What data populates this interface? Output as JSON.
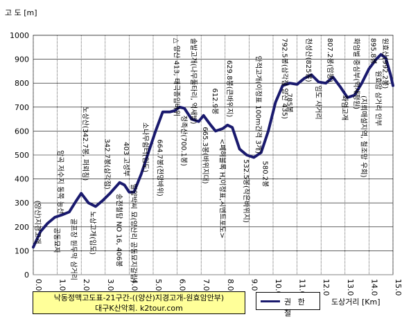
{
  "chart_data": {
    "type": "line",
    "ylabel": "고 도 [m]",
    "xlabel": "도상거리 [Km]",
    "xlim": [
      0,
      15
    ],
    "ylim": [
      0,
      1000
    ],
    "x_ticks": [
      "0.0",
      "1.0",
      "2.0",
      "3.0",
      "4.0",
      "5.0",
      "6.0",
      "7.0",
      "8.0",
      "9.0",
      "10.0",
      "11.0",
      "12.0",
      "13.0",
      "14.0",
      "15.0"
    ],
    "y_ticks": [
      "0",
      "100",
      "200",
      "300",
      "400",
      "500",
      "600",
      "700",
      "800",
      "900",
      "1000"
    ],
    "series": [
      {
        "name": "권 한 철",
        "color": "#1a1a6e",
        "x": [
          0.0,
          0.3,
          0.6,
          0.9,
          1.2,
          1.5,
          1.8,
          2.0,
          2.3,
          2.6,
          2.9,
          3.2,
          3.6,
          3.8,
          4.0,
          4.2,
          4.5,
          4.8,
          5.1,
          5.4,
          5.7,
          5.9,
          6.1,
          6.3,
          6.6,
          6.9,
          7.1,
          7.4,
          7.6,
          7.9,
          8.1,
          8.3,
          8.6,
          8.9,
          9.2,
          9.5,
          9.8,
          10.1,
          10.4,
          10.7,
          11.0,
          11.3,
          11.6,
          11.9,
          12.2,
          12.5,
          12.8,
          13.1,
          13.4,
          13.7,
          14.0,
          14.3,
          14.5,
          14.7,
          14.9,
          15.0
        ],
        "y": [
          115,
          180,
          215,
          240,
          250,
          262,
          310,
          340,
          300,
          285,
          310,
          340,
          385,
          375,
          345,
          345,
          420,
          510,
          600,
          680,
          680,
          685,
          700,
          695,
          650,
          640,
          665,
          625,
          600,
          610,
          625,
          615,
          525,
          500,
          490,
          510,
          600,
          720,
          790,
          800,
          795,
          820,
          835,
          805,
          800,
          825,
          785,
          740,
          750,
          800,
          860,
          900,
          920,
          905,
          835,
          790
        ]
      }
    ],
    "annotations": [
      {
        "x": 0.0,
        "text": "(양산)지경고개"
      },
      {
        "x": 0.8,
        "text": "공동묘지"
      },
      {
        "x": 0.95,
        "text": "암곡 저수지 동쪽 능선"
      },
      {
        "x": 1.5,
        "text": "골프장 원두막 삼거리"
      },
      {
        "x": 2.0,
        "text": "노상산(342.7봉, 퍼뢰침)"
      },
      {
        "x": 2.3,
        "text": "노상고개(임도)"
      },
      {
        "x": 2.9,
        "text": "342.7봉(삼각점)"
      },
      {
        "x": 3.4,
        "text": "송전철탑 NO 16, 406봉"
      },
      {
        "x": 3.7,
        "text": "403 고성부"
      },
      {
        "x": 4.0,
        "text": "밀양박씨 묘(양산리 공동묘지갈림)"
      },
      {
        "x": 4.5,
        "text": "소나무쉼터(임도)"
      },
      {
        "x": 5.1,
        "text": "664.7봉(전망바위)"
      },
      {
        "x": 5.8,
        "text": "△ 양산 413, 태극종입바위"
      },
      {
        "x": 6.1,
        "text": "정족산(700.1봉)"
      },
      {
        "x": 6.5,
        "text": "솔발고개(나무풀타리, 억새밭)"
      },
      {
        "x": 7.0,
        "text": "665.3봉(바위지대)"
      },
      {
        "x": 7.4,
        "text": "612.9봉"
      },
      {
        "x": 7.7,
        "text": "<폐허블록 H,이정표,시멘트포도>"
      },
      {
        "x": 8.0,
        "text": "629.8봉(큰바위지)"
      },
      {
        "x": 8.7,
        "text": "532.5봉(작은바위지)"
      },
      {
        "x": 9.2,
        "text": "안적고개(이정표 100m간격 3개)"
      },
      {
        "x": 9.5,
        "text": "580.2봉"
      },
      {
        "x": 10.3,
        "text": "792.5봉(삼각점 양산 435)"
      },
      {
        "x": 10.5,
        "text": "785봉"
      },
      {
        "x": 11.3,
        "text": "천성산(825봉)"
      },
      {
        "x": 11.7,
        "text": "임도 사거리"
      },
      {
        "x": 12.2,
        "text": "807.2봉(암봉)"
      },
      {
        "x": 12.8,
        "text": "화엄고개"
      },
      {
        "x": 13.3,
        "text": "화엄벌 중심부(억새평원)"
      },
      {
        "x": 13.6,
        "text": "(지뢰매설지역, 철조망 우회)"
      },
      {
        "x": 14.0,
        "text": "895.8봉"
      },
      {
        "x": 14.2,
        "text": "원효암 삼거리 안부"
      },
      {
        "x": 14.5,
        "text": "원효산(992.2봉)"
      }
    ]
  },
  "footer": {
    "title_line1": "낙동정맥고도표-21구간-((양산)지경고개-원효암안부)",
    "title_line2": "대구K산악회. k2tour.com",
    "legend_label": "권 한 철"
  }
}
